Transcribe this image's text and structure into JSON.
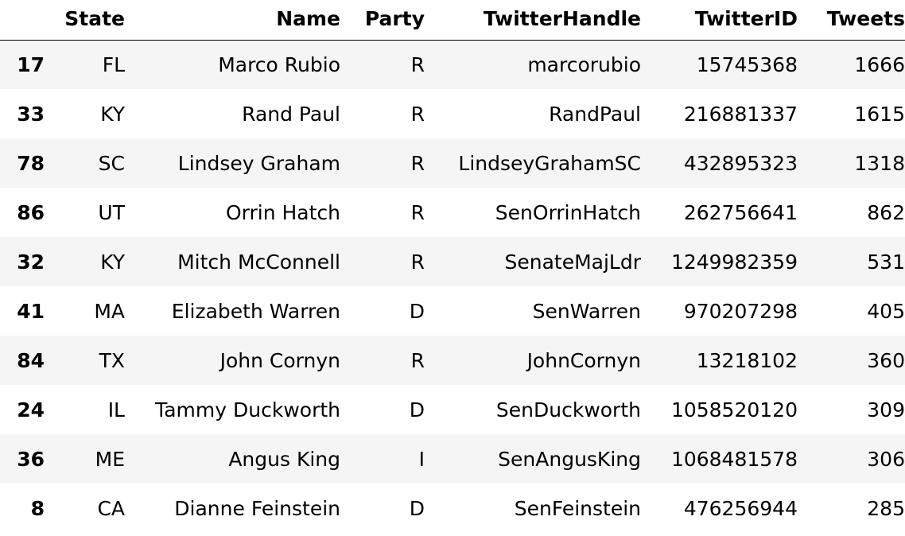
{
  "table": {
    "columns": [
      "",
      "State",
      "Name",
      "Party",
      "TwitterHandle",
      "TwitterID",
      "Tweets"
    ],
    "rows": [
      {
        "index": "17",
        "State": "FL",
        "Name": "Marco Rubio",
        "Party": "R",
        "TwitterHandle": "marcorubio",
        "TwitterID": "15745368",
        "Tweets": "1666"
      },
      {
        "index": "33",
        "State": "KY",
        "Name": "Rand Paul",
        "Party": "R",
        "TwitterHandle": "RandPaul",
        "TwitterID": "216881337",
        "Tweets": "1615"
      },
      {
        "index": "78",
        "State": "SC",
        "Name": "Lindsey Graham",
        "Party": "R",
        "TwitterHandle": "LindseyGrahamSC",
        "TwitterID": "432895323",
        "Tweets": "1318"
      },
      {
        "index": "86",
        "State": "UT",
        "Name": "Orrin Hatch",
        "Party": "R",
        "TwitterHandle": "SenOrrinHatch",
        "TwitterID": "262756641",
        "Tweets": "862"
      },
      {
        "index": "32",
        "State": "KY",
        "Name": "Mitch McConnell",
        "Party": "R",
        "TwitterHandle": "SenateMajLdr",
        "TwitterID": "1249982359",
        "Tweets": "531"
      },
      {
        "index": "41",
        "State": "MA",
        "Name": "Elizabeth Warren",
        "Party": "D",
        "TwitterHandle": "SenWarren",
        "TwitterID": "970207298",
        "Tweets": "405"
      },
      {
        "index": "84",
        "State": "TX",
        "Name": "John Cornyn",
        "Party": "R",
        "TwitterHandle": "JohnCornyn",
        "TwitterID": "13218102",
        "Tweets": "360"
      },
      {
        "index": "24",
        "State": "IL",
        "Name": "Tammy Duckworth",
        "Party": "D",
        "TwitterHandle": "SenDuckworth",
        "TwitterID": "1058520120",
        "Tweets": "309"
      },
      {
        "index": "36",
        "State": "ME",
        "Name": "Angus King",
        "Party": "I",
        "TwitterHandle": "SenAngusKing",
        "TwitterID": "1068481578",
        "Tweets": "306"
      },
      {
        "index": "8",
        "State": "CA",
        "Name": "Dianne Feinstein",
        "Party": "D",
        "TwitterHandle": "SenFeinstein",
        "TwitterID": "476256944",
        "Tweets": "285"
      }
    ]
  }
}
